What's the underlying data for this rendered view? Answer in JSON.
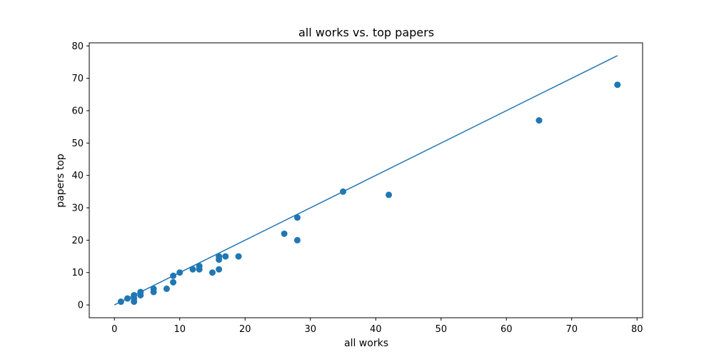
{
  "chart_data": {
    "type": "scatter",
    "title": "all works vs. top papers",
    "xlabel": "all works",
    "ylabel": "papers top",
    "xlim": [
      -3.85,
      80.85
    ],
    "ylim": [
      -3.95,
      80.95
    ],
    "xticks": [
      0,
      10,
      20,
      30,
      40,
      50,
      60,
      70,
      80
    ],
    "yticks": [
      0,
      10,
      20,
      30,
      40,
      50,
      60,
      70,
      80
    ],
    "grid": false,
    "color": "#1f77b4",
    "points": [
      {
        "x": 1,
        "y": 1
      },
      {
        "x": 2,
        "y": 2
      },
      {
        "x": 3,
        "y": 1
      },
      {
        "x": 3,
        "y": 2
      },
      {
        "x": 3,
        "y": 3
      },
      {
        "x": 4,
        "y": 3
      },
      {
        "x": 4,
        "y": 4
      },
      {
        "x": 6,
        "y": 4
      },
      {
        "x": 6,
        "y": 5
      },
      {
        "x": 8,
        "y": 5
      },
      {
        "x": 9,
        "y": 7
      },
      {
        "x": 9,
        "y": 9
      },
      {
        "x": 10,
        "y": 10
      },
      {
        "x": 12,
        "y": 11
      },
      {
        "x": 13,
        "y": 11
      },
      {
        "x": 13,
        "y": 12
      },
      {
        "x": 15,
        "y": 10
      },
      {
        "x": 16,
        "y": 11
      },
      {
        "x": 16,
        "y": 14
      },
      {
        "x": 16,
        "y": 15
      },
      {
        "x": 17,
        "y": 15
      },
      {
        "x": 19,
        "y": 15
      },
      {
        "x": 26,
        "y": 22
      },
      {
        "x": 28,
        "y": 20
      },
      {
        "x": 28,
        "y": 27
      },
      {
        "x": 35,
        "y": 35
      },
      {
        "x": 42,
        "y": 34
      },
      {
        "x": 65,
        "y": 57
      },
      {
        "x": 77,
        "y": 68
      }
    ],
    "line": [
      {
        "x": 0,
        "y": 0
      },
      {
        "x": 77,
        "y": 77
      }
    ]
  }
}
